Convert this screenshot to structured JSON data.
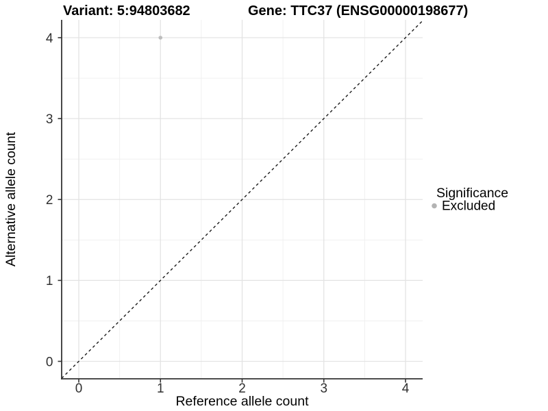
{
  "chart_data": {
    "type": "scatter",
    "title_left": "Variant: 5:94803682",
    "title_right": "Gene: TTC37 (ENSG00000198677)",
    "xlabel": "Reference allele count",
    "ylabel": "Alternative allele count",
    "x_ticks": [
      0,
      1,
      2,
      3,
      4
    ],
    "y_ticks": [
      0,
      1,
      2,
      3,
      4
    ],
    "x_minor_ticks": [
      0.5,
      1.5,
      2.5,
      3.5
    ],
    "y_minor_ticks": [
      0.5,
      1.5,
      2.5,
      3.5
    ],
    "xlim": [
      -0.21,
      4.21
    ],
    "ylim": [
      -0.21,
      4.21
    ],
    "grid": true,
    "points": [
      {
        "x": 1,
        "y": 4,
        "series": "Excluded"
      }
    ],
    "reference_line": {
      "kind": "identity y = x",
      "style": "dashed",
      "color": "#1a1a1a"
    },
    "legend": {
      "title": "Significance",
      "position": "right",
      "items": [
        {
          "label": "Excluded",
          "color": "#b3b3b3"
        }
      ]
    }
  },
  "colors": {
    "background": "#ffffff",
    "grid_major": "#e3e3e3",
    "grid_minor": "#f0f0f0",
    "axis_line": "#333333",
    "tick_label": "#303030",
    "point_fill": "#bdbdbd"
  }
}
